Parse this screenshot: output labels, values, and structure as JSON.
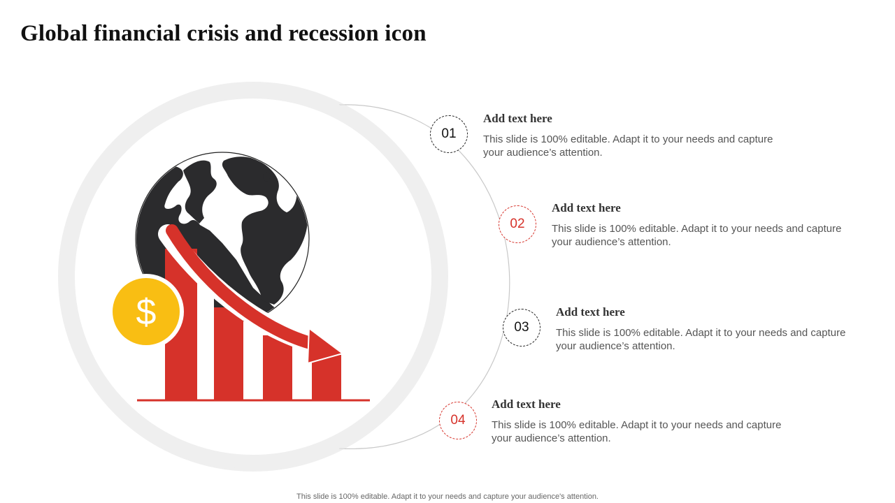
{
  "slide": {
    "title": "Global financial crisis and recession  icon",
    "footer_note": "This slide is 100% editable. Adapt it to your needs and capture your audience's attention."
  },
  "steps": [
    {
      "number": "01",
      "heading": "Add text here",
      "body": "This slide is 100% editable. Adapt it to your needs and capture your audience’s attention."
    },
    {
      "number": "02",
      "heading": "Add text here",
      "body": "This slide is 100% editable. Adapt it to your needs and capture your audience’s attention."
    },
    {
      "number": "03",
      "heading": "Add text here",
      "body": "This slide is 100% editable. Adapt it to your needs and capture your audience’s attention."
    },
    {
      "number": "04",
      "heading": "Add text here",
      "body": "This slide is 100% editable. Adapt it to your needs and capture your audience’s attention."
    }
  ],
  "icons": {
    "illustration": "globe-recession-chart-icon",
    "coin": "dollar-coin-icon",
    "arrow": "downtrend-arrow-icon"
  },
  "colors": {
    "accent_red": "#d6322a",
    "globe_dark": "#2b2b2d",
    "coin_yellow": "#f9be13",
    "ring_gray": "#eeeeee"
  }
}
